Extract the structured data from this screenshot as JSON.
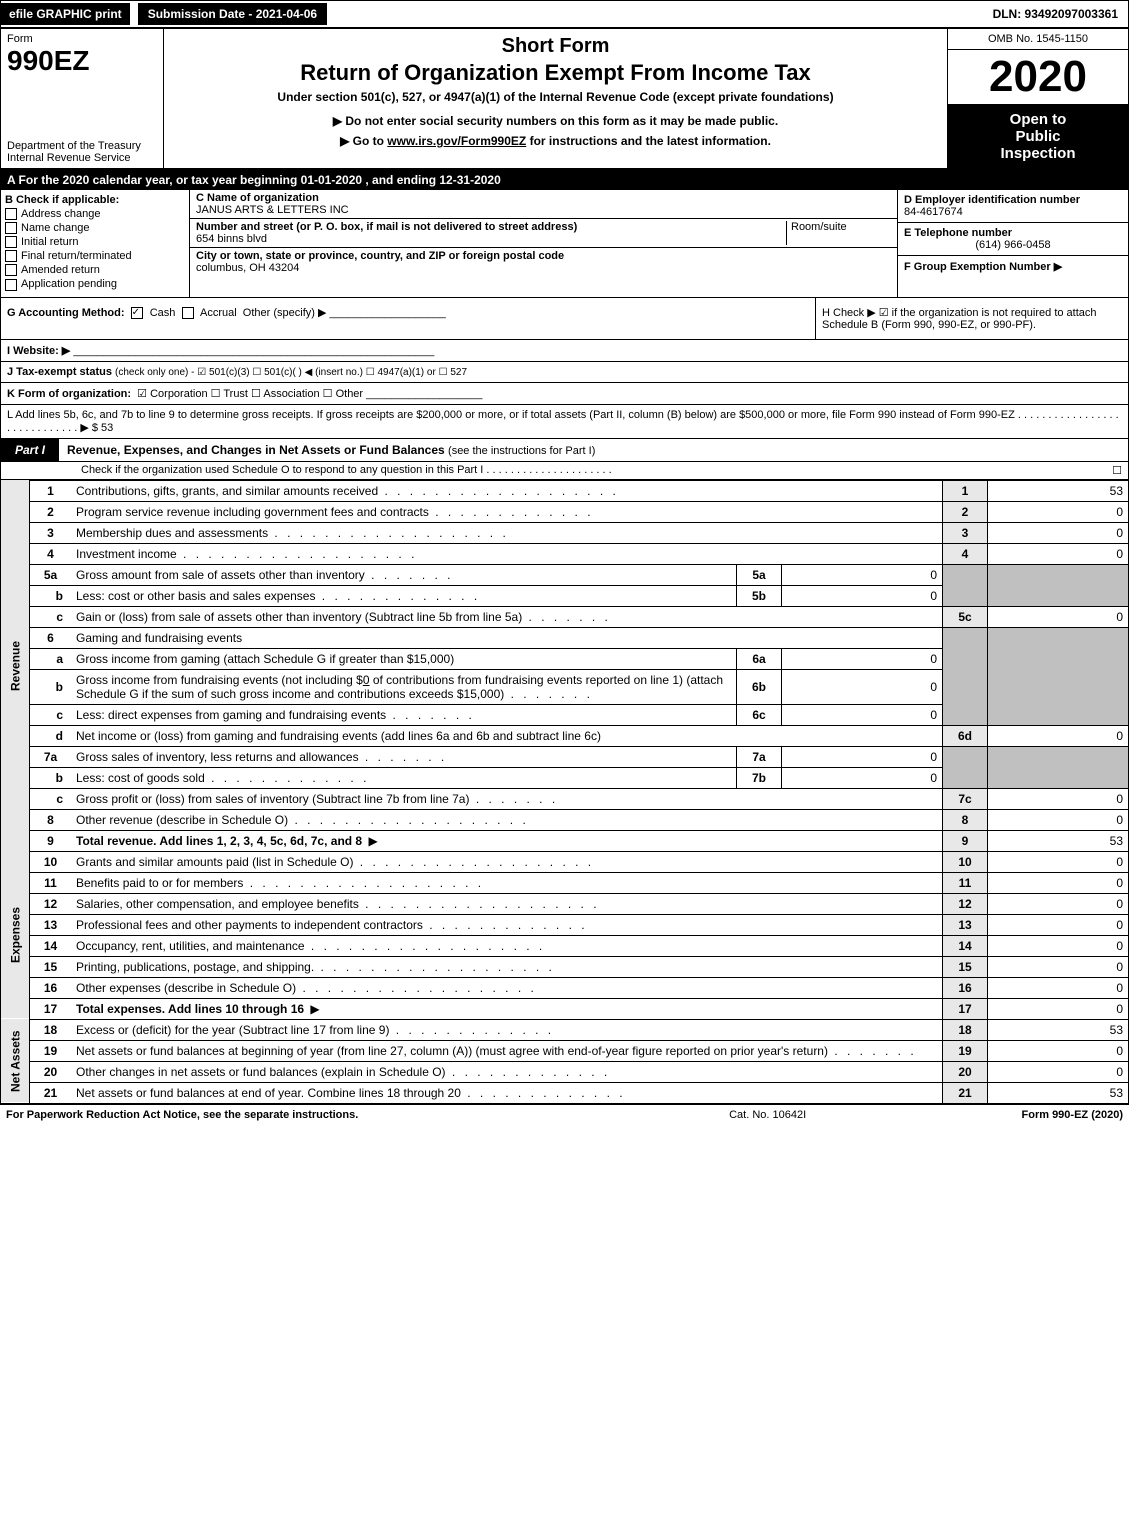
{
  "top": {
    "efile": "efile GRAPHIC print",
    "submission": "Submission Date - 2021-04-06",
    "dln": "DLN: 93492097003361"
  },
  "header": {
    "form_label": "Form",
    "form_number": "990EZ",
    "dept": "Department of the Treasury",
    "irs": "Internal Revenue Service",
    "short_form": "Short Form",
    "main_title": "Return of Organization Exempt From Income Tax",
    "subtitle": "Under section 501(c), 527, or 4947(a)(1) of the Internal Revenue Code (except private foundations)",
    "note1": "▶ Do not enter social security numbers on this form as it may be made public.",
    "note2_prefix": "▶ Go to ",
    "note2_link": "www.irs.gov/Form990EZ",
    "note2_suffix": " for instructions and the latest information.",
    "omb": "OMB No. 1545-1150",
    "year": "2020",
    "inspection_line1": "Open to",
    "inspection_line2": "Public",
    "inspection_line3": "Inspection"
  },
  "section_a": "A For the 2020 calendar year, or tax year beginning 01-01-2020 , and ending 12-31-2020",
  "b": {
    "label": "B  Check if applicable:",
    "addr_change": "Address change",
    "name_change": "Name change",
    "initial": "Initial return",
    "final": "Final return/terminated",
    "amended": "Amended return",
    "pending": "Application pending"
  },
  "c": {
    "name_label": "C Name of organization",
    "name": "JANUS ARTS & LETTERS INC",
    "street_label": "Number and street (or P. O. box, if mail is not delivered to street address)",
    "street": "654 binns blvd",
    "room_label": "Room/suite",
    "city_label": "City or town, state or province, country, and ZIP or foreign postal code",
    "city": "columbus, OH  43204"
  },
  "d": {
    "label": "D Employer identification number",
    "value": "84-4617674"
  },
  "e": {
    "label": "E Telephone number",
    "value": "(614) 966-0458"
  },
  "f": {
    "label": "F Group Exemption Number  ▶"
  },
  "g": {
    "label": "G Accounting Method:",
    "cash": "Cash",
    "accrual": "Accrual",
    "other": "Other (specify) ▶"
  },
  "h": {
    "text": "H  Check ▶   ☑  if the organization is not required to attach Schedule B (Form 990, 990-EZ, or 990-PF)."
  },
  "i": {
    "label": "I Website: ▶"
  },
  "j": {
    "label": "J Tax-exempt status",
    "detail": "(check only one) -  ☑ 501(c)(3)  ☐ 501(c)(   ) ◀ (insert no.)  ☐ 4947(a)(1) or  ☐ 527"
  },
  "k": {
    "label": "K Form of organization:",
    "detail": "☑ Corporation   ☐ Trust   ☐ Association   ☐ Other"
  },
  "l": {
    "text": "L Add lines 5b, 6c, and 7b to line 9 to determine gross receipts. If gross receipts are $200,000 or more, or if total assets (Part II, column (B) below) are $500,000 or more, file Form 990 instead of Form 990-EZ  . . . . . . . . . . . . . . . . . . . . . . . . . . . . .  ▶ $ 53"
  },
  "part1": {
    "label": "Part I",
    "title": "Revenue, Expenses, and Changes in Net Assets or Fund Balances",
    "sub": "(see the instructions for Part I)",
    "check_o": "Check if the organization used Schedule O to respond to any question in this Part I . . . . . . . . . . . . . . . . . . . . .",
    "check_o_val": "☐"
  },
  "sidebars": {
    "revenue": "Revenue",
    "expenses": "Expenses",
    "netassets": "Net Assets"
  },
  "lines": {
    "l1": {
      "desc": "Contributions, gifts, grants, and similar amounts received",
      "num": "1",
      "val": "53"
    },
    "l2": {
      "desc": "Program service revenue including government fees and contracts",
      "num": "2",
      "val": "0"
    },
    "l3": {
      "desc": "Membership dues and assessments",
      "num": "3",
      "val": "0"
    },
    "l4": {
      "desc": "Investment income",
      "num": "4",
      "val": "0"
    },
    "l5a": {
      "desc": "Gross amount from sale of assets other than inventory",
      "subnum": "5a",
      "subval": "0"
    },
    "l5b": {
      "desc": "Less: cost or other basis and sales expenses",
      "subnum": "5b",
      "subval": "0"
    },
    "l5c": {
      "desc": "Gain or (loss) from sale of assets other than inventory (Subtract line 5b from line 5a)",
      "num": "5c",
      "val": "0"
    },
    "l6": {
      "desc": "Gaming and fundraising events"
    },
    "l6a": {
      "desc": "Gross income from gaming (attach Schedule G if greater than $15,000)",
      "subnum": "6a",
      "subval": "0"
    },
    "l6b": {
      "desc_pre": "Gross income from fundraising events (not including $",
      "desc_amt": "0",
      "desc_post": " of contributions from fundraising events reported on line 1) (attach Schedule G if the sum of such gross income and contributions exceeds $15,000)",
      "subnum": "6b",
      "subval": "0"
    },
    "l6c": {
      "desc": "Less: direct expenses from gaming and fundraising events",
      "subnum": "6c",
      "subval": "0"
    },
    "l6d": {
      "desc": "Net income or (loss) from gaming and fundraising events (add lines 6a and 6b and subtract line 6c)",
      "num": "6d",
      "val": "0"
    },
    "l7a": {
      "desc": "Gross sales of inventory, less returns and allowances",
      "subnum": "7a",
      "subval": "0"
    },
    "l7b": {
      "desc": "Less: cost of goods sold",
      "subnum": "7b",
      "subval": "0"
    },
    "l7c": {
      "desc": "Gross profit or (loss) from sales of inventory (Subtract line 7b from line 7a)",
      "num": "7c",
      "val": "0"
    },
    "l8": {
      "desc": "Other revenue (describe in Schedule O)",
      "num": "8",
      "val": "0"
    },
    "l9": {
      "desc": "Total revenue. Add lines 1, 2, 3, 4, 5c, 6d, 7c, and 8",
      "num": "9",
      "val": "53"
    },
    "l10": {
      "desc": "Grants and similar amounts paid (list in Schedule O)",
      "num": "10",
      "val": "0"
    },
    "l11": {
      "desc": "Benefits paid to or for members",
      "num": "11",
      "val": "0"
    },
    "l12": {
      "desc": "Salaries, other compensation, and employee benefits",
      "num": "12",
      "val": "0"
    },
    "l13": {
      "desc": "Professional fees and other payments to independent contractors",
      "num": "13",
      "val": "0"
    },
    "l14": {
      "desc": "Occupancy, rent, utilities, and maintenance",
      "num": "14",
      "val": "0"
    },
    "l15": {
      "desc": "Printing, publications, postage, and shipping.",
      "num": "15",
      "val": "0"
    },
    "l16": {
      "desc": "Other expenses (describe in Schedule O)",
      "num": "16",
      "val": "0"
    },
    "l17": {
      "desc": "Total expenses. Add lines 10 through 16",
      "num": "17",
      "val": "0"
    },
    "l18": {
      "desc": "Excess or (deficit) for the year (Subtract line 17 from line 9)",
      "num": "18",
      "val": "53"
    },
    "l19": {
      "desc": "Net assets or fund balances at beginning of year (from line 27, column (A)) (must agree with end-of-year figure reported on prior year's return)",
      "num": "19",
      "val": "0"
    },
    "l20": {
      "desc": "Other changes in net assets or fund balances (explain in Schedule O)",
      "num": "20",
      "val": "0"
    },
    "l21": {
      "desc": "Net assets or fund balances at end of year. Combine lines 18 through 20",
      "num": "21",
      "val": "53"
    }
  },
  "footer": {
    "left": "For Paperwork Reduction Act Notice, see the separate instructions.",
    "center": "Cat. No. 10642I",
    "right_prefix": "Form ",
    "right_form": "990-EZ",
    "right_suffix": " (2020)"
  },
  "colors": {
    "black": "#000000",
    "white": "#ffffff",
    "shaded": "#c0c0c0",
    "sidebar_bg": "#e8e8e8"
  }
}
